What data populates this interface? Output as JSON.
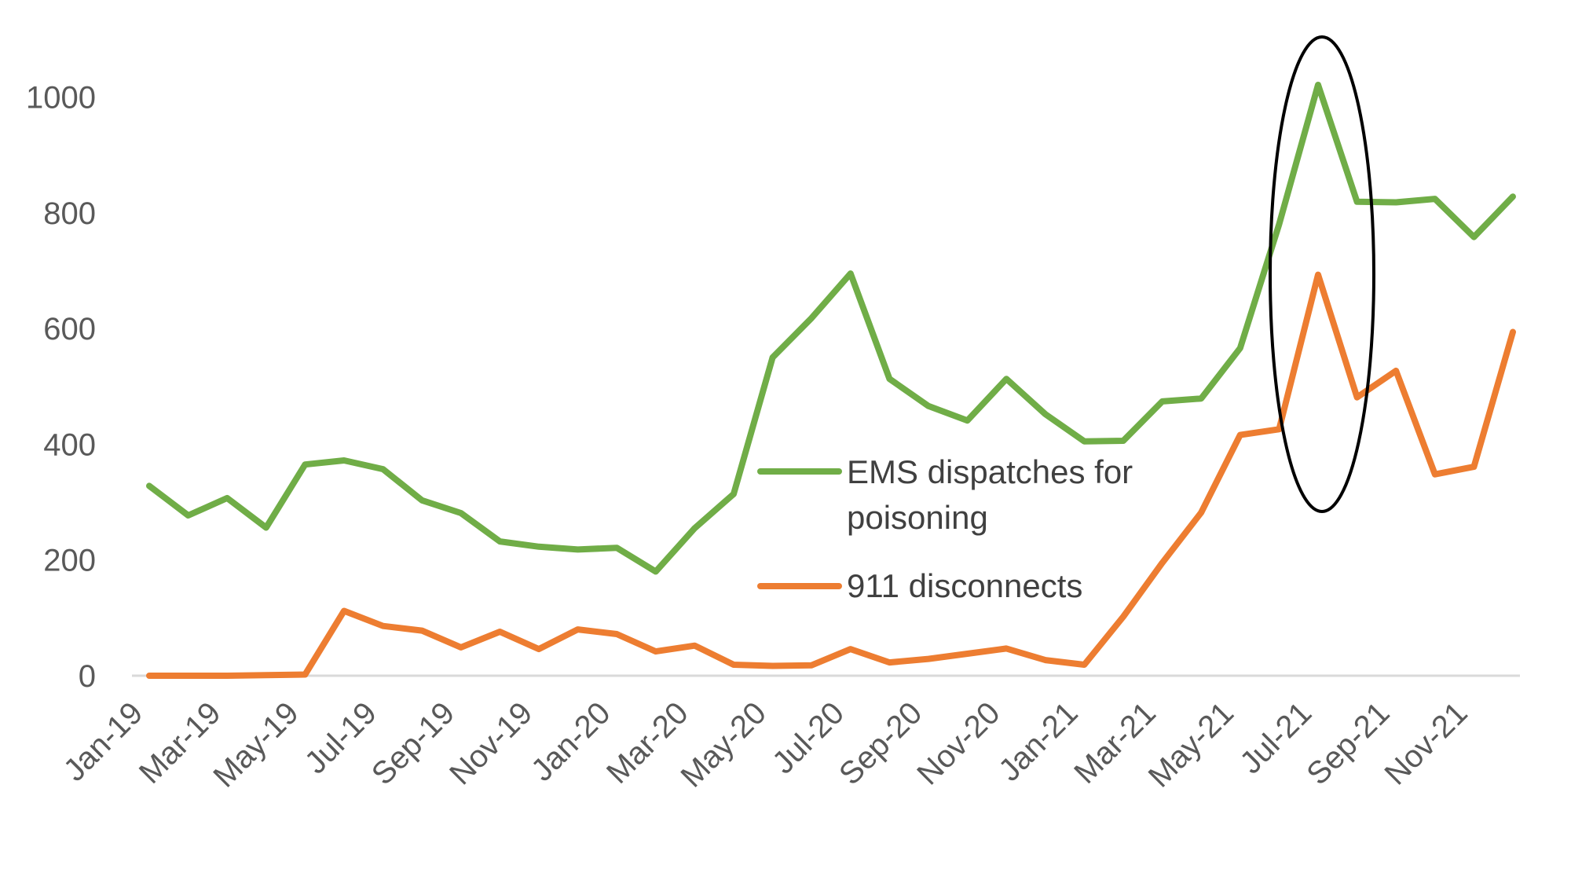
{
  "chart_data": {
    "type": "line",
    "title": "",
    "xlabel": "",
    "ylabel": "",
    "ylim": [
      0,
      1000
    ],
    "yticks": [
      "0",
      "200",
      "400",
      "600",
      "800",
      "1000"
    ],
    "grid": false,
    "legend_position": "center",
    "x": [
      "Jan-19",
      "Feb-19",
      "Mar-19",
      "Apr-19",
      "May-19",
      "Jun-19",
      "Jul-19",
      "Aug-19",
      "Sep-19",
      "Oct-19",
      "Nov-19",
      "Dec-19",
      "Jan-20",
      "Feb-20",
      "Mar-20",
      "Apr-20",
      "May-20",
      "Jun-20",
      "Jul-20",
      "Aug-20",
      "Sep-20",
      "Oct-20",
      "Nov-20",
      "Dec-20",
      "Jan-21",
      "Feb-21",
      "Mar-21",
      "Apr-21",
      "May-21",
      "Jun-21",
      "Jul-21",
      "Aug-21",
      "Sep-21",
      "Oct-21",
      "Nov-21",
      "Dec-21"
    ],
    "xtick_labels": [
      "Jan-19",
      "Mar-19",
      "May-19",
      "Jul-19",
      "Sep-19",
      "Nov-19",
      "Jan-20",
      "Mar-20",
      "May-20",
      "Jul-20",
      "Sep-20",
      "Nov-20",
      "Jan-21",
      "Mar-21",
      "May-21",
      "Jul-21",
      "Sep-21",
      "Nov-21"
    ],
    "series": [
      {
        "name": "EMS dispatches for poisoning",
        "color": "#70ad47",
        "values": [
          328,
          277,
          307,
          256,
          365,
          372,
          357,
          303,
          281,
          232,
          223,
          218,
          221,
          180,
          255,
          314,
          550,
          618,
          695,
          513,
          466,
          441,
          513,
          452,
          405,
          406,
          474,
          479,
          566,
          780,
          1021,
          819,
          818,
          824,
          758,
          828
        ]
      },
      {
        "name": "911 disconnects",
        "color": "#ed7d31",
        "values": [
          0,
          0,
          0,
          1,
          2,
          112,
          86,
          78,
          49,
          76,
          46,
          80,
          72,
          42,
          52,
          19,
          17,
          18,
          46,
          23,
          29,
          38,
          47,
          27,
          19,
          102,
          195,
          282,
          416,
          426,
          693,
          481,
          527,
          348,
          361,
          594
        ]
      }
    ],
    "annotations": [
      {
        "type": "ellipse",
        "target": "Jul-21",
        "color": "#000000"
      }
    ]
  }
}
